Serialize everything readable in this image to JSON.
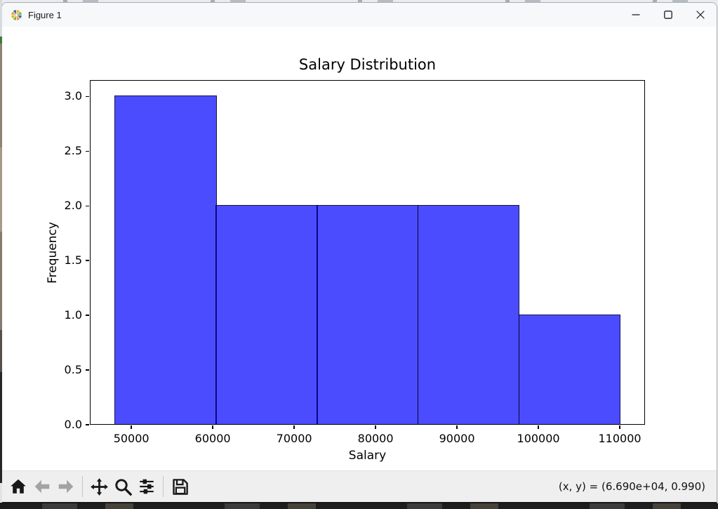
{
  "titlebar": {
    "title": "Figure 1",
    "icon": "matplotlib-logo-icon",
    "controls": [
      "minimize-icon",
      "maximize-icon",
      "close-icon"
    ]
  },
  "toolbar": {
    "icons": [
      "home-icon",
      "back-icon",
      "forward-icon",
      "pan-icon",
      "zoom-icon",
      "subplots-icon",
      "save-icon"
    ],
    "disabled_icons": [
      "back-icon",
      "forward-icon"
    ],
    "status": "(x, y) = (6.690e+04, 0.990)"
  },
  "chart_data": {
    "type": "bar",
    "subtype": "histogram",
    "title": "Salary Distribution",
    "xlabel": "Salary",
    "ylabel": "Frequency",
    "bin_edges": [
      48000,
      60400,
      72800,
      85200,
      97600,
      110000
    ],
    "counts": [
      3,
      2,
      2,
      2,
      1
    ],
    "xlim": [
      44900,
      113100
    ],
    "ylim": [
      0,
      3.15
    ],
    "xticks": [
      50000,
      60000,
      70000,
      80000,
      90000,
      100000,
      110000
    ],
    "xtick_labels": [
      "50000",
      "60000",
      "70000",
      "80000",
      "90000",
      "100000",
      "110000"
    ],
    "yticks": [
      0.0,
      0.5,
      1.0,
      1.5,
      2.0,
      2.5,
      3.0
    ],
    "ytick_labels": [
      "0.0",
      "0.5",
      "1.0",
      "1.5",
      "2.0",
      "2.5",
      "3.0"
    ],
    "bar_fill": "rgba(0,0,255,0.7)",
    "bar_fill_hex_on_white": "#4D4DFF",
    "bar_edge": "rgba(0,0,0,0.7)",
    "grid": false,
    "legend": null
  }
}
